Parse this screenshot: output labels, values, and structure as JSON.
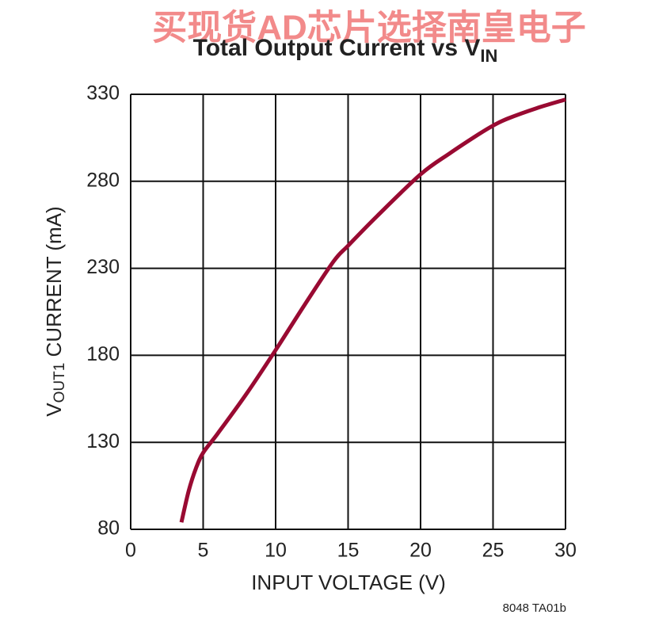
{
  "chart_data": {
    "type": "line",
    "watermark": "买现货AD芯片选择南皇电子",
    "title": "Total Output Current vs V",
    "title_subscript": "IN",
    "xlabel": "INPUT VOLTAGE (V)",
    "ylabel_main": "V",
    "ylabel_subscript": "OUT1",
    "ylabel_rest": " CURRENT (mA)",
    "figure_code": "8048 TA01b",
    "x": [
      3.5,
      4,
      4.5,
      5,
      6,
      8,
      10,
      12,
      14,
      15,
      17,
      20,
      22,
      24,
      25,
      26,
      28,
      30
    ],
    "values": [
      84,
      102,
      115,
      124,
      135,
      158,
      183,
      209,
      234,
      243,
      260,
      284,
      296,
      307,
      312,
      316,
      322,
      327
    ],
    "color": "#990a32",
    "xlim": [
      0,
      30
    ],
    "xticks": [
      0,
      5,
      10,
      15,
      20,
      25,
      30
    ],
    "ylim": [
      80,
      330
    ],
    "yticks": [
      80,
      130,
      180,
      230,
      280,
      330
    ],
    "grid": true
  }
}
